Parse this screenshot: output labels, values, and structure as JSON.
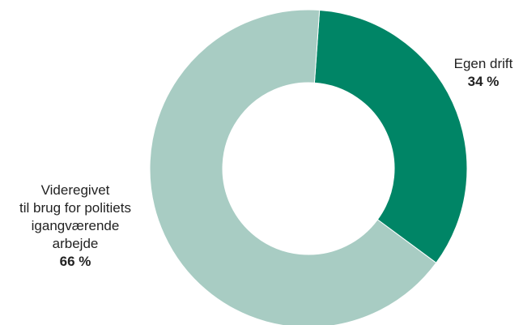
{
  "chart_data": {
    "type": "pie",
    "variant": "donut",
    "title": "",
    "series": [
      {
        "name_lines": [
          "Egen drift"
        ],
        "value": 34,
        "value_label": "34 %",
        "color": "#008566"
      },
      {
        "name_lines": [
          "Videregivet",
          "til brug for politiets",
          "igangværende",
          "arbejde"
        ],
        "value": 66,
        "value_label": "66 %",
        "color": "#a8ccc3"
      }
    ],
    "unit": "%",
    "start_angle_deg": 4,
    "direction": "clockwise",
    "legend": "none"
  }
}
